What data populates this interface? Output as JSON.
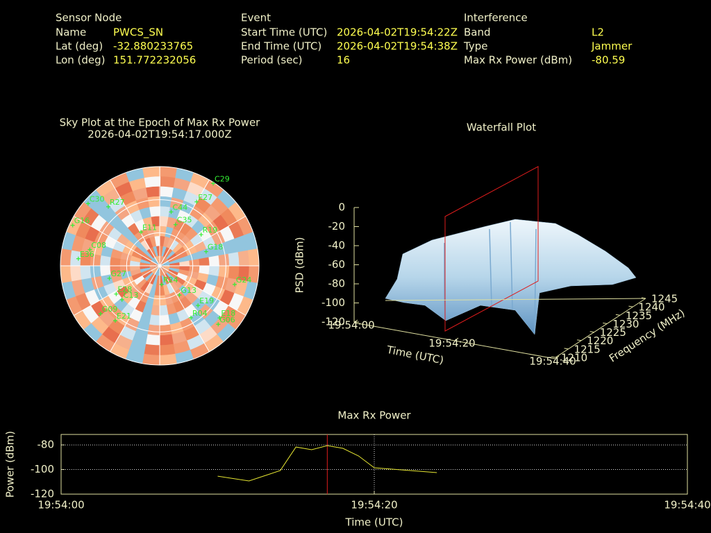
{
  "info": {
    "sensor": {
      "title": "Sensor Node",
      "labels": [
        "Name",
        "Lat (deg)",
        "Lon (deg)"
      ],
      "values": [
        "PWCS_SN",
        "-32.880233765",
        "151.772232056"
      ]
    },
    "event": {
      "title": "Event",
      "labels": [
        "Start Time (UTC)",
        "End Time (UTC)",
        "Period (sec)"
      ],
      "values": [
        "2026-04-02T19:54:22Z",
        "2026-04-02T19:54:38Z",
        "16"
      ]
    },
    "interference": {
      "title": "Interference",
      "labels": [
        "Band",
        "Type",
        "Max Rx Power (dBm)"
      ],
      "values": [
        "L2",
        "Jammer",
        "-80.59"
      ]
    }
  },
  "chart_data": [
    {
      "type": "skyplot",
      "title": "Sky Plot at the Epoch of Max Rx Power",
      "subtitle": "2026-04-02T19:54:17.000Z",
      "color": "#33ee33",
      "satellites": [
        {
          "name": "C29",
          "az": 33,
          "el": 1
        },
        {
          "name": "E27",
          "az": 30,
          "el": 23
        },
        {
          "name": "R19",
          "az": 53,
          "el": 43
        },
        {
          "name": "G18",
          "az": 73,
          "el": 46
        },
        {
          "name": "G24",
          "az": 104,
          "el": 20
        },
        {
          "name": "E19",
          "az": 136,
          "el": 40
        },
        {
          "name": "R04",
          "az": 149,
          "el": 35
        },
        {
          "name": "E18",
          "az": 131,
          "el": 18
        },
        {
          "name": "G06",
          "az": 135,
          "el": 15
        },
        {
          "name": "E11",
          "az": 331,
          "el": 55
        },
        {
          "name": "C35",
          "az": 21,
          "el": 50
        },
        {
          "name": "C08",
          "az": 283,
          "el": 25
        },
        {
          "name": "E36",
          "az": 275,
          "el": 16
        },
        {
          "name": "G16",
          "az": 295,
          "el": 3
        },
        {
          "name": "C30",
          "az": 311,
          "el": 4
        },
        {
          "name": "R27",
          "az": 319,
          "el": 19
        },
        {
          "name": "E28",
          "az": 237,
          "el": 43
        },
        {
          "name": "C13",
          "az": 228,
          "el": 44
        },
        {
          "name": "G27",
          "az": 256,
          "el": 43
        },
        {
          "name": "E21",
          "az": 219,
          "el": 26
        },
        {
          "name": "G09",
          "az": 231,
          "el": 21
        },
        {
          "name": "R24",
          "az": 174,
          "el": 73
        },
        {
          "name": "C44",
          "az": 12,
          "el": 40
        },
        {
          "name": "G13",
          "az": 146,
          "el": 58
        }
      ]
    },
    {
      "type": "surface3d",
      "title": "Waterfall Plot",
      "xlabel": "Time (UTC)",
      "ylabel": "Frequency (MHz)",
      "zlabel": "PSD (dBm)",
      "xlim": [
        0,
        40
      ],
      "xticks": [
        {
          "value": 0,
          "label": "19:54:00"
        },
        {
          "value": 20,
          "label": "19:54:20"
        },
        {
          "value": 40,
          "label": "19:54:40"
        }
      ],
      "ylim": [
        1210,
        1245
      ],
      "yticks": [
        1210,
        1215,
        1220,
        1225,
        1230,
        1235,
        1240,
        1245
      ],
      "zlim": [
        -120,
        0
      ],
      "zticks": [
        0,
        -20,
        -40,
        -60,
        -80,
        -100,
        -120
      ]
    },
    {
      "type": "line",
      "title": "Max Rx Power",
      "xlabel": "Time (UTC)",
      "ylabel": "Power (dBm)",
      "color": "#e6e632",
      "marker_x": 17,
      "x": [
        10,
        12,
        14,
        15,
        16,
        17,
        18,
        19,
        20,
        24
      ],
      "values": [
        -105.4,
        -109.3,
        -100.8,
        -81.7,
        -83.9,
        -80.59,
        -82.8,
        -89.0,
        -98.6,
        -102.5
      ],
      "xlim": [
        0,
        40
      ],
      "xticks": [
        {
          "value": 0,
          "label": "19:54:00"
        },
        {
          "value": 20,
          "label": "19:54:20"
        },
        {
          "value": 40,
          "label": "19:54:40"
        }
      ],
      "ylim": [
        -120,
        -71.5
      ],
      "yticks": [
        -80,
        -100,
        -120
      ],
      "grid": true
    }
  ]
}
